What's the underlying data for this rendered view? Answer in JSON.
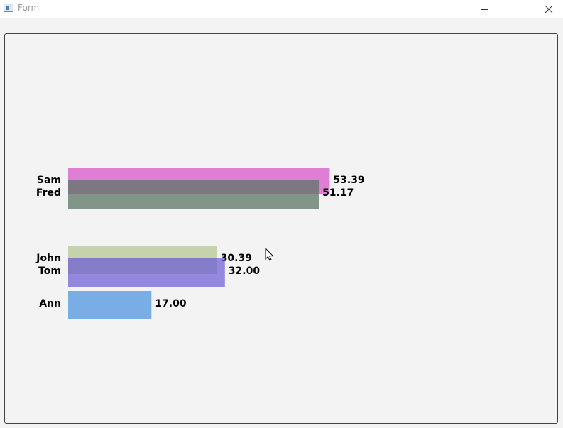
{
  "window": {
    "title": "Form"
  },
  "chart_data": {
    "type": "bar",
    "title": "",
    "xlabel": "",
    "ylabel": "",
    "bars": [
      {
        "label": "Sam",
        "value": 53.39,
        "value_label": "53.39",
        "color": "#d857c8",
        "opacity": 0.75
      },
      {
        "label": "Fred",
        "value": 51.17,
        "value_label": "51.17",
        "color": "#5c7566",
        "opacity": 0.75
      },
      {
        "label": "John",
        "value": 30.39,
        "value_label": "30.39",
        "color": "#b0c58f",
        "opacity": 0.7
      },
      {
        "label": "Tom",
        "value": 32.0,
        "value_label": "32.00",
        "color": "#6a58d6",
        "opacity": 0.7
      },
      {
        "label": "Ann",
        "value": 17.0,
        "value_label": "17.00",
        "color": "#4f96e0",
        "opacity": 0.75
      }
    ]
  }
}
